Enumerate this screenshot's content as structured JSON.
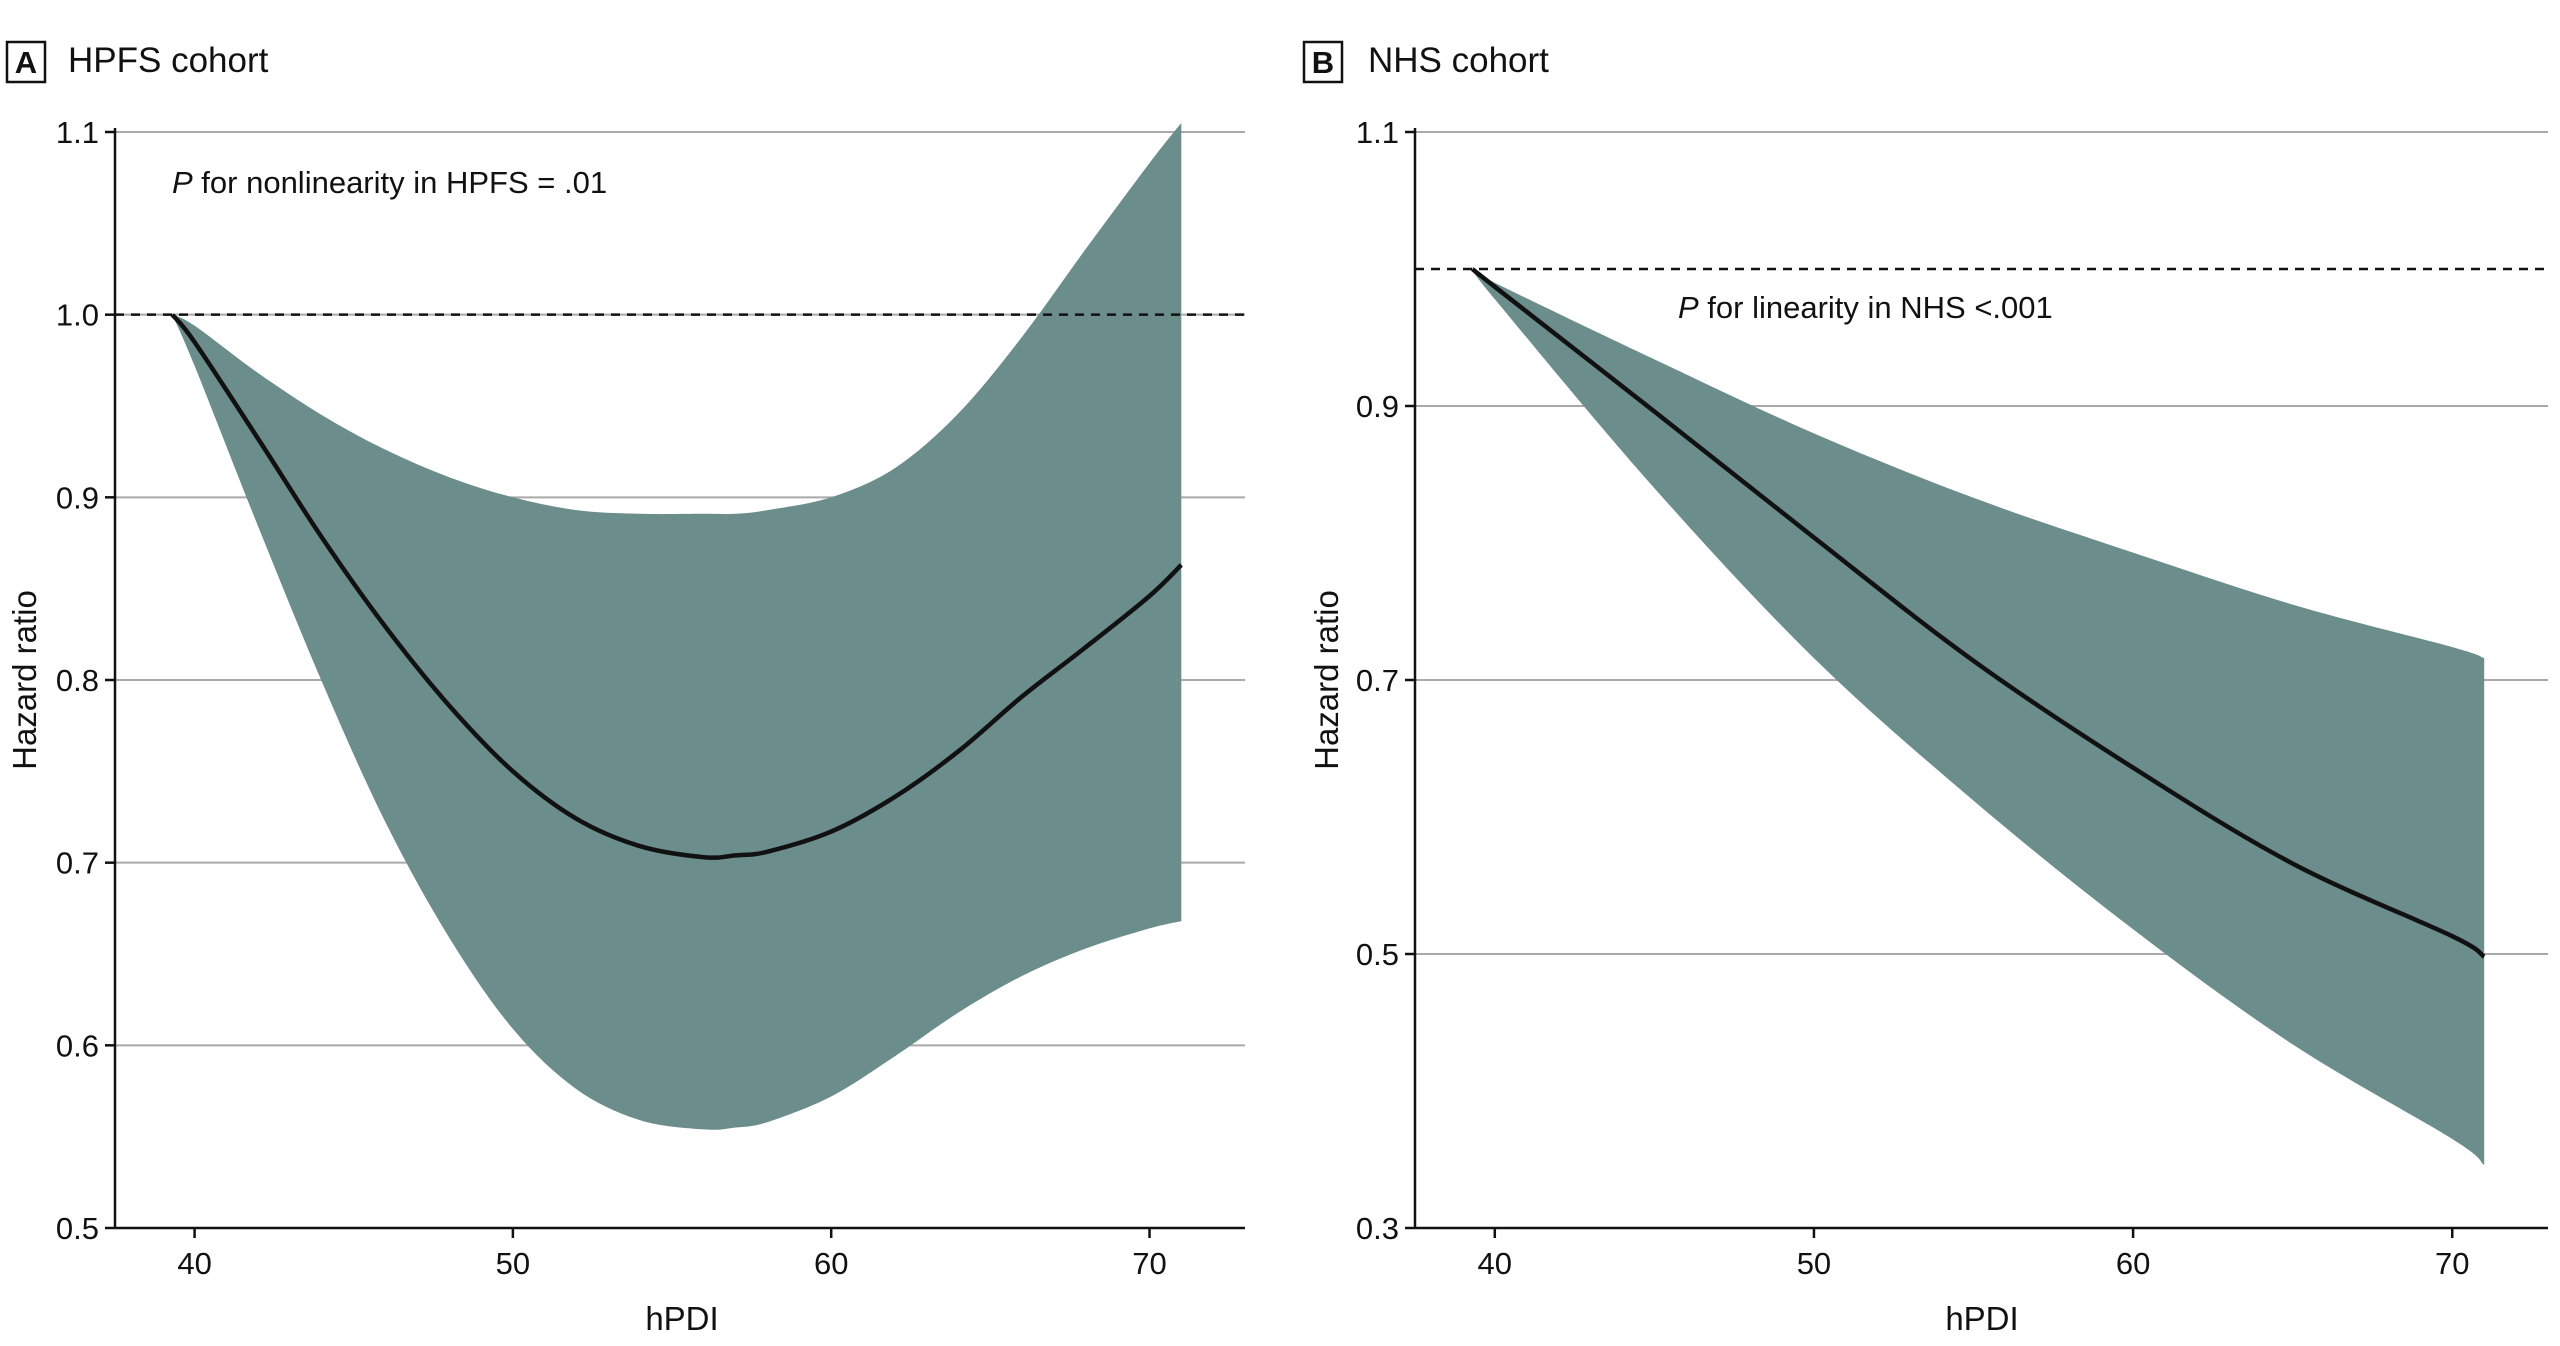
{
  "colors": {
    "ci_band": "#6b8d8c",
    "curve": "#111111",
    "grid": "#a9a9a9",
    "reference_line": "#111111"
  },
  "chart_data": [
    {
      "type": "line",
      "panel_letter": "A",
      "title": "HPFS cohort",
      "xlabel": "hPDI",
      "ylabel": "Hazard ratio",
      "xlim": [
        37.5,
        73
      ],
      "ylim": [
        0.5,
        1.1
      ],
      "xticks": [
        40,
        50,
        60,
        70
      ],
      "xtick_labels": [
        "40",
        "50",
        "60",
        "70"
      ],
      "yticks": [
        0.5,
        0.6,
        0.7,
        0.8,
        0.9,
        1.0,
        1.1
      ],
      "ytick_labels": [
        "0.5",
        "0.6",
        "0.7",
        "0.8",
        "0.9",
        "1.0",
        "1.1"
      ],
      "grid": true,
      "reference_y": 1.0,
      "annotation": {
        "italic": "P",
        "text": " for nonlinearity in HPFS = .01"
      },
      "x": [
        39.3,
        40,
        42,
        44,
        46,
        48,
        50,
        52,
        54,
        56,
        57,
        58,
        60,
        62,
        64,
        66,
        68,
        70,
        71
      ],
      "series": [
        {
          "role": "estimate",
          "values": [
            1.0,
            0.985,
            0.932,
            0.878,
            0.829,
            0.786,
            0.75,
            0.724,
            0.709,
            0.703,
            0.704,
            0.706,
            0.717,
            0.736,
            0.761,
            0.791,
            0.818,
            0.846,
            0.863
          ]
        },
        {
          "role": "ci_upper",
          "values": [
            1.0,
            0.994,
            0.968,
            0.945,
            0.926,
            0.911,
            0.9,
            0.893,
            0.891,
            0.891,
            0.891,
            0.893,
            0.9,
            0.916,
            0.946,
            0.988,
            1.036,
            1.083,
            1.105
          ]
        },
        {
          "role": "ci_lower",
          "values": [
            1.0,
            0.972,
            0.884,
            0.799,
            0.722,
            0.659,
            0.609,
            0.576,
            0.559,
            0.554,
            0.555,
            0.558,
            0.572,
            0.594,
            0.618,
            0.638,
            0.653,
            0.664,
            0.668
          ]
        }
      ]
    },
    {
      "type": "line",
      "panel_letter": "B",
      "title": "NHS cohort",
      "xlabel": "hPDI",
      "ylabel": "Hazard ratio",
      "xlim": [
        37.5,
        73
      ],
      "ylim": [
        0.3,
        1.1
      ],
      "xticks": [
        40,
        50,
        60,
        70
      ],
      "xtick_labels": [
        "40",
        "50",
        "60",
        "70"
      ],
      "yticks": [
        0.3,
        0.5,
        0.7,
        0.9,
        1.1
      ],
      "ytick_labels": [
        "0.3",
        "0.5",
        "0.7",
        "0.9",
        "1.1"
      ],
      "grid": true,
      "reference_y": 1.0,
      "annotation": {
        "italic": "P",
        "text": " for linearity in NHS <.001"
      },
      "x": [
        39.3,
        40,
        45,
        50,
        55,
        60,
        65,
        70,
        71
      ],
      "series": [
        {
          "role": "estimate",
          "values": [
            1.0,
            0.987,
            0.896,
            0.804,
            0.714,
            0.636,
            0.566,
            0.513,
            0.498
          ]
        },
        {
          "role": "ci_upper",
          "values": [
            1.0,
            0.99,
            0.934,
            0.88,
            0.833,
            0.793,
            0.755,
            0.724,
            0.716
          ]
        },
        {
          "role": "ci_lower",
          "values": [
            1.0,
            0.978,
            0.84,
            0.716,
            0.612,
            0.518,
            0.434,
            0.365,
            0.346
          ]
        }
      ]
    }
  ]
}
